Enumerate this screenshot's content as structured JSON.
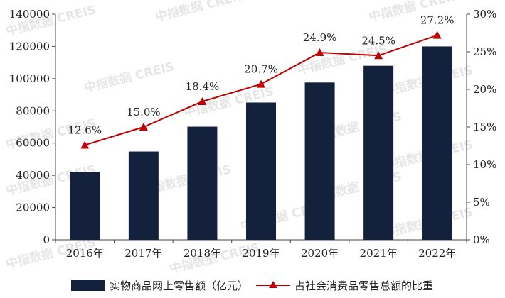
{
  "watermark": "中指数据 CREIS",
  "colors": {
    "bar": "#14213d",
    "line": "#c00000",
    "axis": "#444444",
    "text": "#222222",
    "watermark": "#e6e6e6"
  },
  "chart_data": {
    "type": "bar",
    "title": "",
    "xlabel": "",
    "categories": [
      "2016年",
      "2017年",
      "2018年",
      "2019年",
      "2020年",
      "2021年",
      "2022年"
    ],
    "series": [
      {
        "name": "实物商品网上零售额（亿元）",
        "type": "bar",
        "axis": "left",
        "values": [
          41900,
          54800,
          70200,
          85200,
          97600,
          108000,
          120000
        ]
      },
      {
        "name": "占社会消费品零售总额的比重",
        "type": "line",
        "axis": "right",
        "marker": "triangle",
        "values": [
          12.6,
          15.0,
          18.4,
          20.7,
          24.9,
          24.5,
          27.2
        ],
        "labels": [
          "12.6%",
          "15.0%",
          "18.4%",
          "20.7%",
          "24.9%",
          "24.5%",
          "27.2%"
        ]
      }
    ],
    "y_left": {
      "min": 0,
      "max": 140000,
      "ticks": [
        0,
        20000,
        40000,
        60000,
        80000,
        100000,
        120000,
        140000
      ],
      "tick_labels": [
        "0",
        "20000",
        "40000",
        "60000",
        "80000",
        "100000",
        "120000",
        "140000"
      ]
    },
    "y_right": {
      "min": 0,
      "max": 30,
      "ticks": [
        0,
        5,
        10,
        15,
        20,
        25,
        30
      ],
      "tick_labels": [
        "0%",
        "5%",
        "10%",
        "15%",
        "20%",
        "25%",
        "30%"
      ]
    },
    "grid": false,
    "legend": {
      "position": "bottom"
    }
  }
}
